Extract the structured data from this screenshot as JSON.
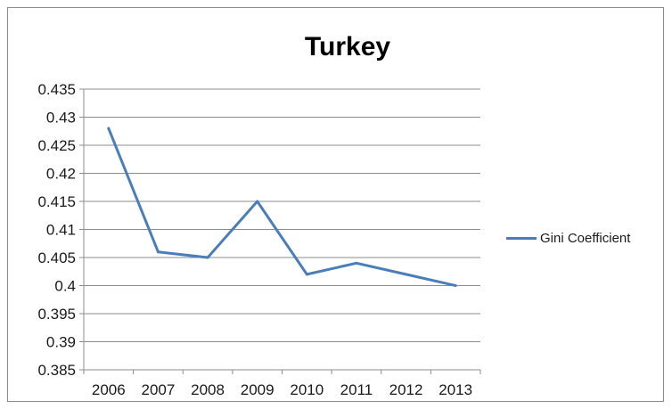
{
  "chart_data": {
    "type": "line",
    "title": "Turkey",
    "xlabel": "",
    "ylabel": "",
    "categories": [
      "2006",
      "2007",
      "2008",
      "2009",
      "2010",
      "2011",
      "2012",
      "2013"
    ],
    "series": [
      {
        "name": "Gini Coefficient",
        "values": [
          0.428,
          0.406,
          0.405,
          0.415,
          0.402,
          0.404,
          0.402,
          0.4
        ],
        "color": "#4a7ebb"
      }
    ],
    "ylim": [
      0.385,
      0.435
    ],
    "yticks": [
      "0.385",
      "0.39",
      "0.395",
      "0.4",
      "0.405",
      "0.41",
      "0.415",
      "0.42",
      "0.425",
      "0.43",
      "0.435"
    ],
    "grid": true,
    "legend_position": "right"
  }
}
